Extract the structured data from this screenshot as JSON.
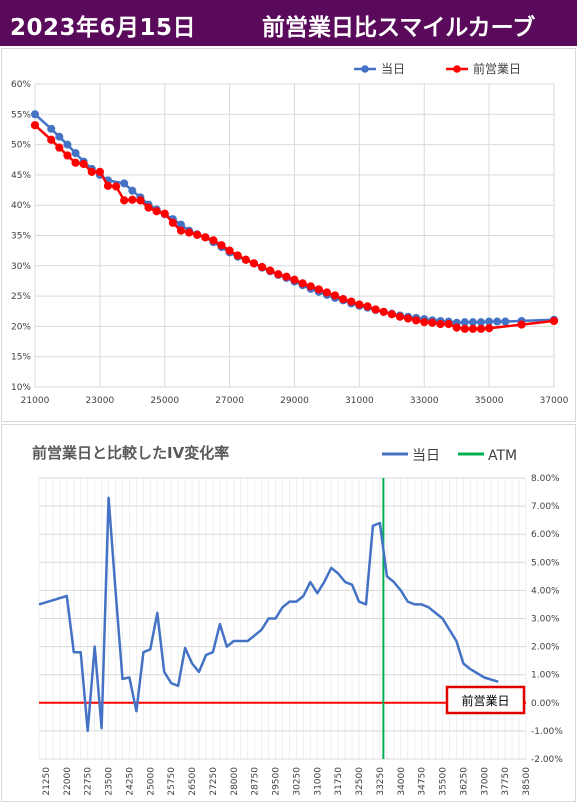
{
  "header": {
    "date": "2023年6月15日",
    "title": "前営業日比スマイルカーブ"
  },
  "colors": {
    "header_bg": "#5a0a5a",
    "today": "#4472c4",
    "prev": "#ff0000",
    "iv_change": "#4472c4",
    "atm": "#00b050",
    "zero_line": "#ff0000"
  },
  "chart_data": [
    {
      "type": "line",
      "title": "",
      "xlim": [
        21000,
        37000
      ],
      "ylim": [
        10,
        60
      ],
      "y_unit": "%",
      "grid": true,
      "legend": "top-right",
      "x_ticks": [
        "21000",
        "23000",
        "25000",
        "27000",
        "29000",
        "31000",
        "33000",
        "35000",
        "37000"
      ],
      "y_ticks": [
        "10%",
        "15%",
        "20%",
        "25%",
        "30%",
        "35%",
        "40%",
        "45%",
        "50%",
        "55%",
        "60%"
      ],
      "series": [
        {
          "name": "当日",
          "color": "#4472c4",
          "x": [
            21000,
            21500,
            21750,
            22000,
            22250,
            22500,
            22750,
            23000,
            23250,
            23750,
            24000,
            24250,
            24500,
            24750,
            25000,
            25250,
            25500,
            25750,
            26000,
            26250,
            26500,
            26750,
            27000,
            27250,
            27500,
            27750,
            28000,
            28250,
            28500,
            28750,
            29000,
            29250,
            29500,
            29750,
            30000,
            30250,
            30500,
            30750,
            31000,
            31250,
            31500,
            31750,
            32000,
            32250,
            32500,
            32750,
            33000,
            33250,
            33500,
            33750,
            34000,
            34250,
            34500,
            34750,
            35000,
            35250,
            35500,
            36000,
            37000
          ],
          "y": [
            55.0,
            52.6,
            51.3,
            50.0,
            48.6,
            47.2,
            46.0,
            45.0,
            44.1,
            43.6,
            42.4,
            41.3,
            40.1,
            39.3,
            38.5,
            37.7,
            36.8,
            35.8,
            35.2,
            34.7,
            33.9,
            33.1,
            32.2,
            31.5,
            31.0,
            30.4,
            29.7,
            29.1,
            28.5,
            28.0,
            27.4,
            26.8,
            26.2,
            25.7,
            25.2,
            24.7,
            24.3,
            23.8,
            23.4,
            23.1,
            22.7,
            22.4,
            22.1,
            21.8,
            21.6,
            21.4,
            21.2,
            21.0,
            20.9,
            20.8,
            20.6,
            20.7,
            20.7,
            20.7,
            20.8,
            20.8,
            20.8,
            20.9,
            21.1
          ]
        },
        {
          "name": "前営業日",
          "color": "#ff0000",
          "x": [
            21000,
            21500,
            21750,
            22000,
            22250,
            22500,
            22750,
            23000,
            23250,
            23500,
            23750,
            24000,
            24250,
            24500,
            24750,
            25000,
            25250,
            25500,
            25750,
            26000,
            26250,
            26500,
            26750,
            27000,
            27250,
            27500,
            27750,
            28000,
            28250,
            28500,
            28750,
            29000,
            29250,
            29500,
            29750,
            30000,
            30250,
            30500,
            30750,
            31000,
            31250,
            31500,
            31750,
            32000,
            32250,
            32500,
            32750,
            33000,
            33250,
            33500,
            33750,
            34000,
            34250,
            34500,
            34750,
            35000,
            36000,
            37000
          ],
          "y": [
            53.2,
            50.8,
            49.5,
            48.2,
            47.0,
            46.8,
            45.5,
            45.5,
            43.2,
            43.1,
            40.8,
            40.9,
            40.8,
            39.6,
            39.0,
            38.6,
            37.1,
            35.8,
            35.5,
            35.1,
            34.7,
            34.2,
            33.4,
            32.5,
            31.7,
            31.0,
            30.4,
            29.8,
            29.2,
            28.6,
            28.2,
            27.7,
            27.1,
            26.6,
            26.1,
            25.6,
            25.1,
            24.5,
            24.1,
            23.6,
            23.3,
            22.8,
            22.4,
            22.0,
            21.6,
            21.3,
            21.0,
            20.7,
            20.6,
            20.4,
            20.4,
            19.8,
            19.6,
            19.6,
            19.6,
            19.7,
            20.3,
            20.9
          ]
        }
      ]
    },
    {
      "type": "line",
      "title": "前営業日と比較したIV変化率",
      "ylim": [
        -2.0,
        8.0
      ],
      "y_unit": "%",
      "grid": true,
      "legend": "top-right",
      "x_ticks": [
        "21250",
        "22000",
        "22750",
        "23500",
        "24250",
        "25000",
        "25750",
        "26500",
        "27250",
        "28000",
        "28750",
        "29500",
        "30250",
        "31000",
        "31750",
        "32500",
        "33250",
        "34000",
        "34750",
        "35500",
        "36250",
        "37000",
        "37750",
        "38500"
      ],
      "y_ticks": [
        "-2.00%",
        "-1.00%",
        "0.00%",
        "1.00%",
        "2.00%",
        "3.00%",
        "4.00%",
        "5.00%",
        "6.00%",
        "7.00%",
        "8.00%"
      ],
      "series": [
        {
          "name": "当日",
          "color": "#4472c4",
          "x": [
            21000,
            22000,
            22250,
            22500,
            22750,
            23000,
            23250,
            23500,
            23750,
            24000,
            24250,
            24500,
            24750,
            25000,
            25250,
            25500,
            25750,
            26000,
            26250,
            26500,
            26750,
            27000,
            27250,
            27500,
            27750,
            28000,
            28250,
            28500,
            28750,
            29000,
            29250,
            29500,
            29750,
            30000,
            30250,
            30500,
            30750,
            31000,
            31250,
            31500,
            31750,
            32000,
            32250,
            32500,
            32750,
            33000,
            33250,
            33500,
            33750,
            34000,
            34250,
            34500,
            34750,
            35000,
            35500,
            36000,
            36250,
            36500,
            37000,
            37500
          ],
          "y": [
            3.5,
            3.8,
            1.8,
            1.8,
            -1.0,
            2.0,
            -0.9,
            7.3,
            4.0,
            0.85,
            0.9,
            -0.3,
            1.8,
            1.9,
            3.2,
            1.1,
            0.7,
            0.6,
            1.95,
            1.4,
            1.1,
            1.7,
            1.8,
            2.8,
            2.0,
            2.2,
            2.2,
            2.2,
            2.4,
            2.6,
            3.0,
            3.0,
            3.4,
            3.6,
            3.6,
            3.8,
            4.3,
            3.9,
            4.3,
            4.8,
            4.6,
            4.3,
            4.2,
            3.6,
            3.5,
            6.3,
            6.4,
            4.5,
            4.3,
            4.0,
            3.6,
            3.5,
            3.5,
            3.4,
            3.0,
            2.2,
            1.4,
            1.2,
            0.9,
            0.75
          ]
        }
      ],
      "atm": {
        "name": "ATM",
        "x": 33375,
        "color": "#00b050"
      },
      "zero_line_label": "前営業日"
    }
  ]
}
